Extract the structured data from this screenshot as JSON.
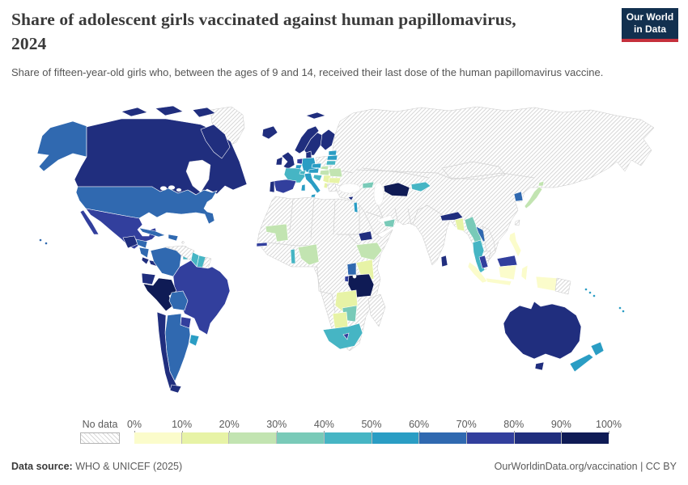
{
  "header": {
    "title_line1": "Share of adolescent girls vaccinated against human papillomavirus,",
    "title_line2": "2024",
    "subtitle": "Share of fifteen-year-old girls who, between the ages of 9 and 14, received their last dose of the human papillomavirus vaccine.",
    "logo": {
      "line1": "Our World",
      "line2": "in Data",
      "bg": "#12304F",
      "accent": "#C5303C"
    }
  },
  "legend": {
    "no_data_label": "No data",
    "ticks": [
      "0%",
      "10%",
      "20%",
      "30%",
      "40%",
      "50%",
      "60%",
      "70%",
      "80%",
      "90%",
      "100%"
    ],
    "bucket_labels": [
      "0-10%",
      "10-20%",
      "20-30%",
      "30-40%",
      "40-50%",
      "50-60%",
      "60-70%",
      "70-80%",
      "80-90%",
      "90-100%"
    ],
    "colors": [
      "#fbfccb",
      "#e7f3a6",
      "#c2e4b1",
      "#79cab8",
      "#46b5c4",
      "#2a9dc4",
      "#3069b0",
      "#323f9d",
      "#202e7e",
      "#0f1b55"
    ]
  },
  "footer": {
    "source_label": "Data source:",
    "source_text": " WHO & UNICEF (2025)",
    "right_text": "OurWorldinData.org/vaccination | CC BY"
  },
  "chart_data": {
    "type": "choropleth",
    "title": "Share of adolescent girls vaccinated against human papillomavirus, 2024",
    "unit": "% of fifteen-year-old girls",
    "scale": "YlGnBu, 10 bins from 0% to 100%, hatched = no data",
    "no_data_regions": [
      "Russia",
      "China",
      "India",
      "Turkey",
      "Ukraine",
      "Kazakhstan",
      "Uzbekistan",
      "Iran",
      "Saudi Arabia",
      "most of North & Central Africa",
      "Venezuela",
      "Poland",
      "Greece",
      "Greenland",
      "Madagascar",
      "Mozambique",
      "Vietnam",
      "Cambodia",
      "Taiwan",
      "Papua New Guinea",
      "French Guiana"
    ],
    "countries": [
      {
        "id": "canada",
        "name": "Canada",
        "value": "80-90%",
        "bucket": 8
      },
      {
        "id": "united-states",
        "name": "United States",
        "value": "60-70%",
        "bucket": 6
      },
      {
        "id": "greenland",
        "name": "Greenland",
        "value": "No data",
        "bucket": null
      },
      {
        "id": "mexico",
        "name": "Mexico",
        "value": "70-80%",
        "bucket": 7
      },
      {
        "id": "guatemala",
        "name": "Guatemala",
        "value": "80-90%",
        "bucket": 8
      },
      {
        "id": "honduras",
        "name": "Honduras",
        "value": "60-70%",
        "bucket": 6
      },
      {
        "id": "nicaragua",
        "name": "Nicaragua",
        "value": "60-70%",
        "bucket": 6
      },
      {
        "id": "costa-rica",
        "name": "Costa Rica",
        "value": "80-90%",
        "bucket": 8
      },
      {
        "id": "panama",
        "name": "Panama",
        "value": "80-90%",
        "bucket": 8
      },
      {
        "id": "cuba",
        "name": "Cuba",
        "value": "60-70%",
        "bucket": 6
      },
      {
        "id": "dominican-republic",
        "name": "Dominican Republic",
        "value": "60-70%",
        "bucket": 6
      },
      {
        "id": "trinidad-and-tobago",
        "name": "Trinidad and Tobago",
        "value": "40-50%",
        "bucket": 4
      },
      {
        "id": "colombia",
        "name": "Colombia",
        "value": "60-70%",
        "bucket": 6
      },
      {
        "id": "venezuela",
        "name": "Venezuela",
        "value": "No data",
        "bucket": null
      },
      {
        "id": "guyana",
        "name": "Guyana",
        "value": "40-50%",
        "bucket": 4
      },
      {
        "id": "suriname",
        "name": "Suriname",
        "value": "40-50%",
        "bucket": 4
      },
      {
        "id": "french-guiana",
        "name": "French Guiana",
        "value": "No data",
        "bucket": null
      },
      {
        "id": "brazil",
        "name": "Brazil",
        "value": "70-80%",
        "bucket": 7
      },
      {
        "id": "ecuador",
        "name": "Ecuador",
        "value": "80-90%",
        "bucket": 8
      },
      {
        "id": "peru",
        "name": "Peru",
        "value": "90-100%",
        "bucket": 9
      },
      {
        "id": "bolivia",
        "name": "Bolivia",
        "value": "60-70%",
        "bucket": 6
      },
      {
        "id": "paraguay",
        "name": "Paraguay",
        "value": "70-80%",
        "bucket": 7
      },
      {
        "id": "chile",
        "name": "Chile",
        "value": "80-90%",
        "bucket": 8
      },
      {
        "id": "argentina",
        "name": "Argentina",
        "value": "60-70%",
        "bucket": 6
      },
      {
        "id": "uruguay",
        "name": "Uruguay",
        "value": "50-60%",
        "bucket": 5
      },
      {
        "id": "iceland",
        "name": "Iceland",
        "value": "80-90%",
        "bucket": 8
      },
      {
        "id": "norway",
        "name": "Norway",
        "value": "80-90%",
        "bucket": 8
      },
      {
        "id": "sweden",
        "name": "Sweden",
        "value": "80-90%",
        "bucket": 8
      },
      {
        "id": "finland",
        "name": "Finland",
        "value": "80-90%",
        "bucket": 8
      },
      {
        "id": "denmark",
        "name": "Denmark",
        "value": "80-90%",
        "bucket": 8
      },
      {
        "id": "united-kingdom",
        "name": "United Kingdom",
        "value": "80-90%",
        "bucket": 8
      },
      {
        "id": "ireland",
        "name": "Ireland",
        "value": "80-90%",
        "bucket": 8
      },
      {
        "id": "netherlands",
        "name": "Netherlands",
        "value": "70-80%",
        "bucket": 7
      },
      {
        "id": "belgium",
        "name": "Belgium",
        "value": "50-60%",
        "bucket": 5
      },
      {
        "id": "germany",
        "name": "Germany",
        "value": "50-60%",
        "bucket": 5
      },
      {
        "id": "france",
        "name": "France",
        "value": "40-50%",
        "bucket": 4
      },
      {
        "id": "spain",
        "name": "Spain",
        "value": "70-80%",
        "bucket": 7
      },
      {
        "id": "portugal",
        "name": "Portugal",
        "value": "80-90%",
        "bucket": 8
      },
      {
        "id": "italy",
        "name": "Italy",
        "value": "50-60%",
        "bucket": 5
      },
      {
        "id": "switzerland",
        "name": "Switzerland",
        "value": "40-50%",
        "bucket": 4
      },
      {
        "id": "austria",
        "name": "Austria",
        "value": "50-60%",
        "bucket": 5
      },
      {
        "id": "czechia",
        "name": "Czechia",
        "value": "50-60%",
        "bucket": 5
      },
      {
        "id": "slovakia",
        "name": "Slovakia",
        "value": "20-30%",
        "bucket": 2
      },
      {
        "id": "hungary",
        "name": "Hungary",
        "value": "20-30%",
        "bucket": 2
      },
      {
        "id": "poland",
        "name": "Poland",
        "value": "No data",
        "bucket": null
      },
      {
        "id": "croatia",
        "name": "Croatia",
        "value": "40-50%",
        "bucket": 4
      },
      {
        "id": "serbia",
        "name": "Serbia",
        "value": "10-20%",
        "bucket": 1
      },
      {
        "id": "albania",
        "name": "Albania",
        "value": "10-20%",
        "bucket": 1
      },
      {
        "id": "romania",
        "name": "Romania",
        "value": "20-30%",
        "bucket": 2
      },
      {
        "id": "bulgaria",
        "name": "Bulgaria",
        "value": "10-20%",
        "bucket": 1
      },
      {
        "id": "greece",
        "name": "Greece",
        "value": "No data",
        "bucket": null
      },
      {
        "id": "estonia",
        "name": "Estonia",
        "value": "50-60%",
        "bucket": 5
      },
      {
        "id": "latvia",
        "name": "Latvia",
        "value": "50-60%",
        "bucket": 5
      },
      {
        "id": "lithuania",
        "name": "Lithuania",
        "value": "40-50%",
        "bucket": 4
      },
      {
        "id": "georgia",
        "name": "Georgia",
        "value": "30-40%",
        "bucket": 3
      },
      {
        "id": "turkmenistan",
        "name": "Turkmenistan",
        "value": "90-100%",
        "bucket": 9
      },
      {
        "id": "kyrgyzstan",
        "name": "Kyrgyzstan",
        "value": "40-50%",
        "bucket": 4
      },
      {
        "id": "cyprus",
        "name": "Cyprus",
        "value": "80-90%",
        "bucket": 8
      },
      {
        "id": "israel",
        "name": "Israel",
        "value": "50-60%",
        "bucket": 5
      },
      {
        "id": "united-arab-emirates",
        "name": "United Arab Emirates",
        "value": "30-40%",
        "bucket": 3
      },
      {
        "id": "nepal",
        "name": "Nepal / Bhutan",
        "value": "80-90%",
        "bucket": 8
      },
      {
        "id": "bangladesh",
        "name": "Bangladesh",
        "value": "10-20%",
        "bucket": 1
      },
      {
        "id": "sri-lanka",
        "name": "Sri Lanka",
        "value": "80-90%",
        "bucket": 8
      },
      {
        "id": "myanmar",
        "name": "Myanmar",
        "value": "30-40%",
        "bucket": 3
      },
      {
        "id": "thailand",
        "name": "Thailand",
        "value": "40-50%",
        "bucket": 4
      },
      {
        "id": "laos",
        "name": "Laos",
        "value": "60-70%",
        "bucket": 6
      },
      {
        "id": "vietnam",
        "name": "Vietnam",
        "value": "No data",
        "bucket": null
      },
      {
        "id": "cambodia",
        "name": "Cambodia",
        "value": "No data",
        "bucket": null
      },
      {
        "id": "malaysia",
        "name": "Malaysia",
        "value": "70-80%",
        "bucket": 7
      },
      {
        "id": "indonesia",
        "name": "Indonesia",
        "value": "0-10%",
        "bucket": 0
      },
      {
        "id": "philippines",
        "name": "Philippines",
        "value": "0-10%",
        "bucket": 0
      },
      {
        "id": "taiwan",
        "name": "Taiwan",
        "value": "No data",
        "bucket": null
      },
      {
        "id": "south-korea",
        "name": "South Korea",
        "value": "60-70%",
        "bucket": 6
      },
      {
        "id": "japan",
        "name": "Japan",
        "value": "20-30%",
        "bucket": 2
      },
      {
        "id": "mauritania",
        "name": "Mauritania",
        "value": "20-30%",
        "bucket": 2
      },
      {
        "id": "gambia",
        "name": "Gambia",
        "value": "70-80%",
        "bucket": 7
      },
      {
        "id": "togo",
        "name": "Togo",
        "value": "40-50%",
        "bucket": 4
      },
      {
        "id": "nigeria",
        "name": "Nigeria",
        "value": "20-30%",
        "bucket": 2
      },
      {
        "id": "eritrea",
        "name": "Eritrea",
        "value": "80-90%",
        "bucket": 8
      },
      {
        "id": "ethiopia",
        "name": "Ethiopia",
        "value": "20-30%",
        "bucket": 2
      },
      {
        "id": "uganda",
        "name": "Uganda",
        "value": "60-70%",
        "bucket": 6
      },
      {
        "id": "kenya",
        "name": "Kenya",
        "value": "10-20%",
        "bucket": 1
      },
      {
        "id": "rwanda",
        "name": "Rwanda / Burundi",
        "value": "70-80%",
        "bucket": 7
      },
      {
        "id": "tanzania",
        "name": "Tanzania",
        "value": "90-100%",
        "bucket": 9
      },
      {
        "id": "zambia",
        "name": "Zambia",
        "value": "10-20%",
        "bucket": 1
      },
      {
        "id": "zimbabwe",
        "name": "Zimbabwe",
        "value": "30-40%",
        "bucket": 3
      },
      {
        "id": "botswana",
        "name": "Botswana",
        "value": "10-20%",
        "bucket": 1
      },
      {
        "id": "south-africa",
        "name": "South Africa",
        "value": "40-50%",
        "bucket": 4
      },
      {
        "id": "lesotho",
        "name": "Lesotho",
        "value": "70-80%",
        "bucket": 7
      },
      {
        "id": "madagascar",
        "name": "Madagascar",
        "value": "No data",
        "bucket": null
      },
      {
        "id": "papua-new-guinea",
        "name": "Papua New Guinea",
        "value": "No data",
        "bucket": null
      },
      {
        "id": "australia",
        "name": "Australia",
        "value": "80-90%",
        "bucket": 8
      },
      {
        "id": "new-zealand",
        "name": "New Zealand",
        "value": "50-60%",
        "bucket": 5
      },
      {
        "id": "fiji",
        "name": "Fiji",
        "value": "50-60%",
        "bucket": 5
      },
      {
        "id": "solomon-islands",
        "name": "Solomon Islands",
        "value": "50-60%",
        "bucket": 5
      }
    ]
  }
}
